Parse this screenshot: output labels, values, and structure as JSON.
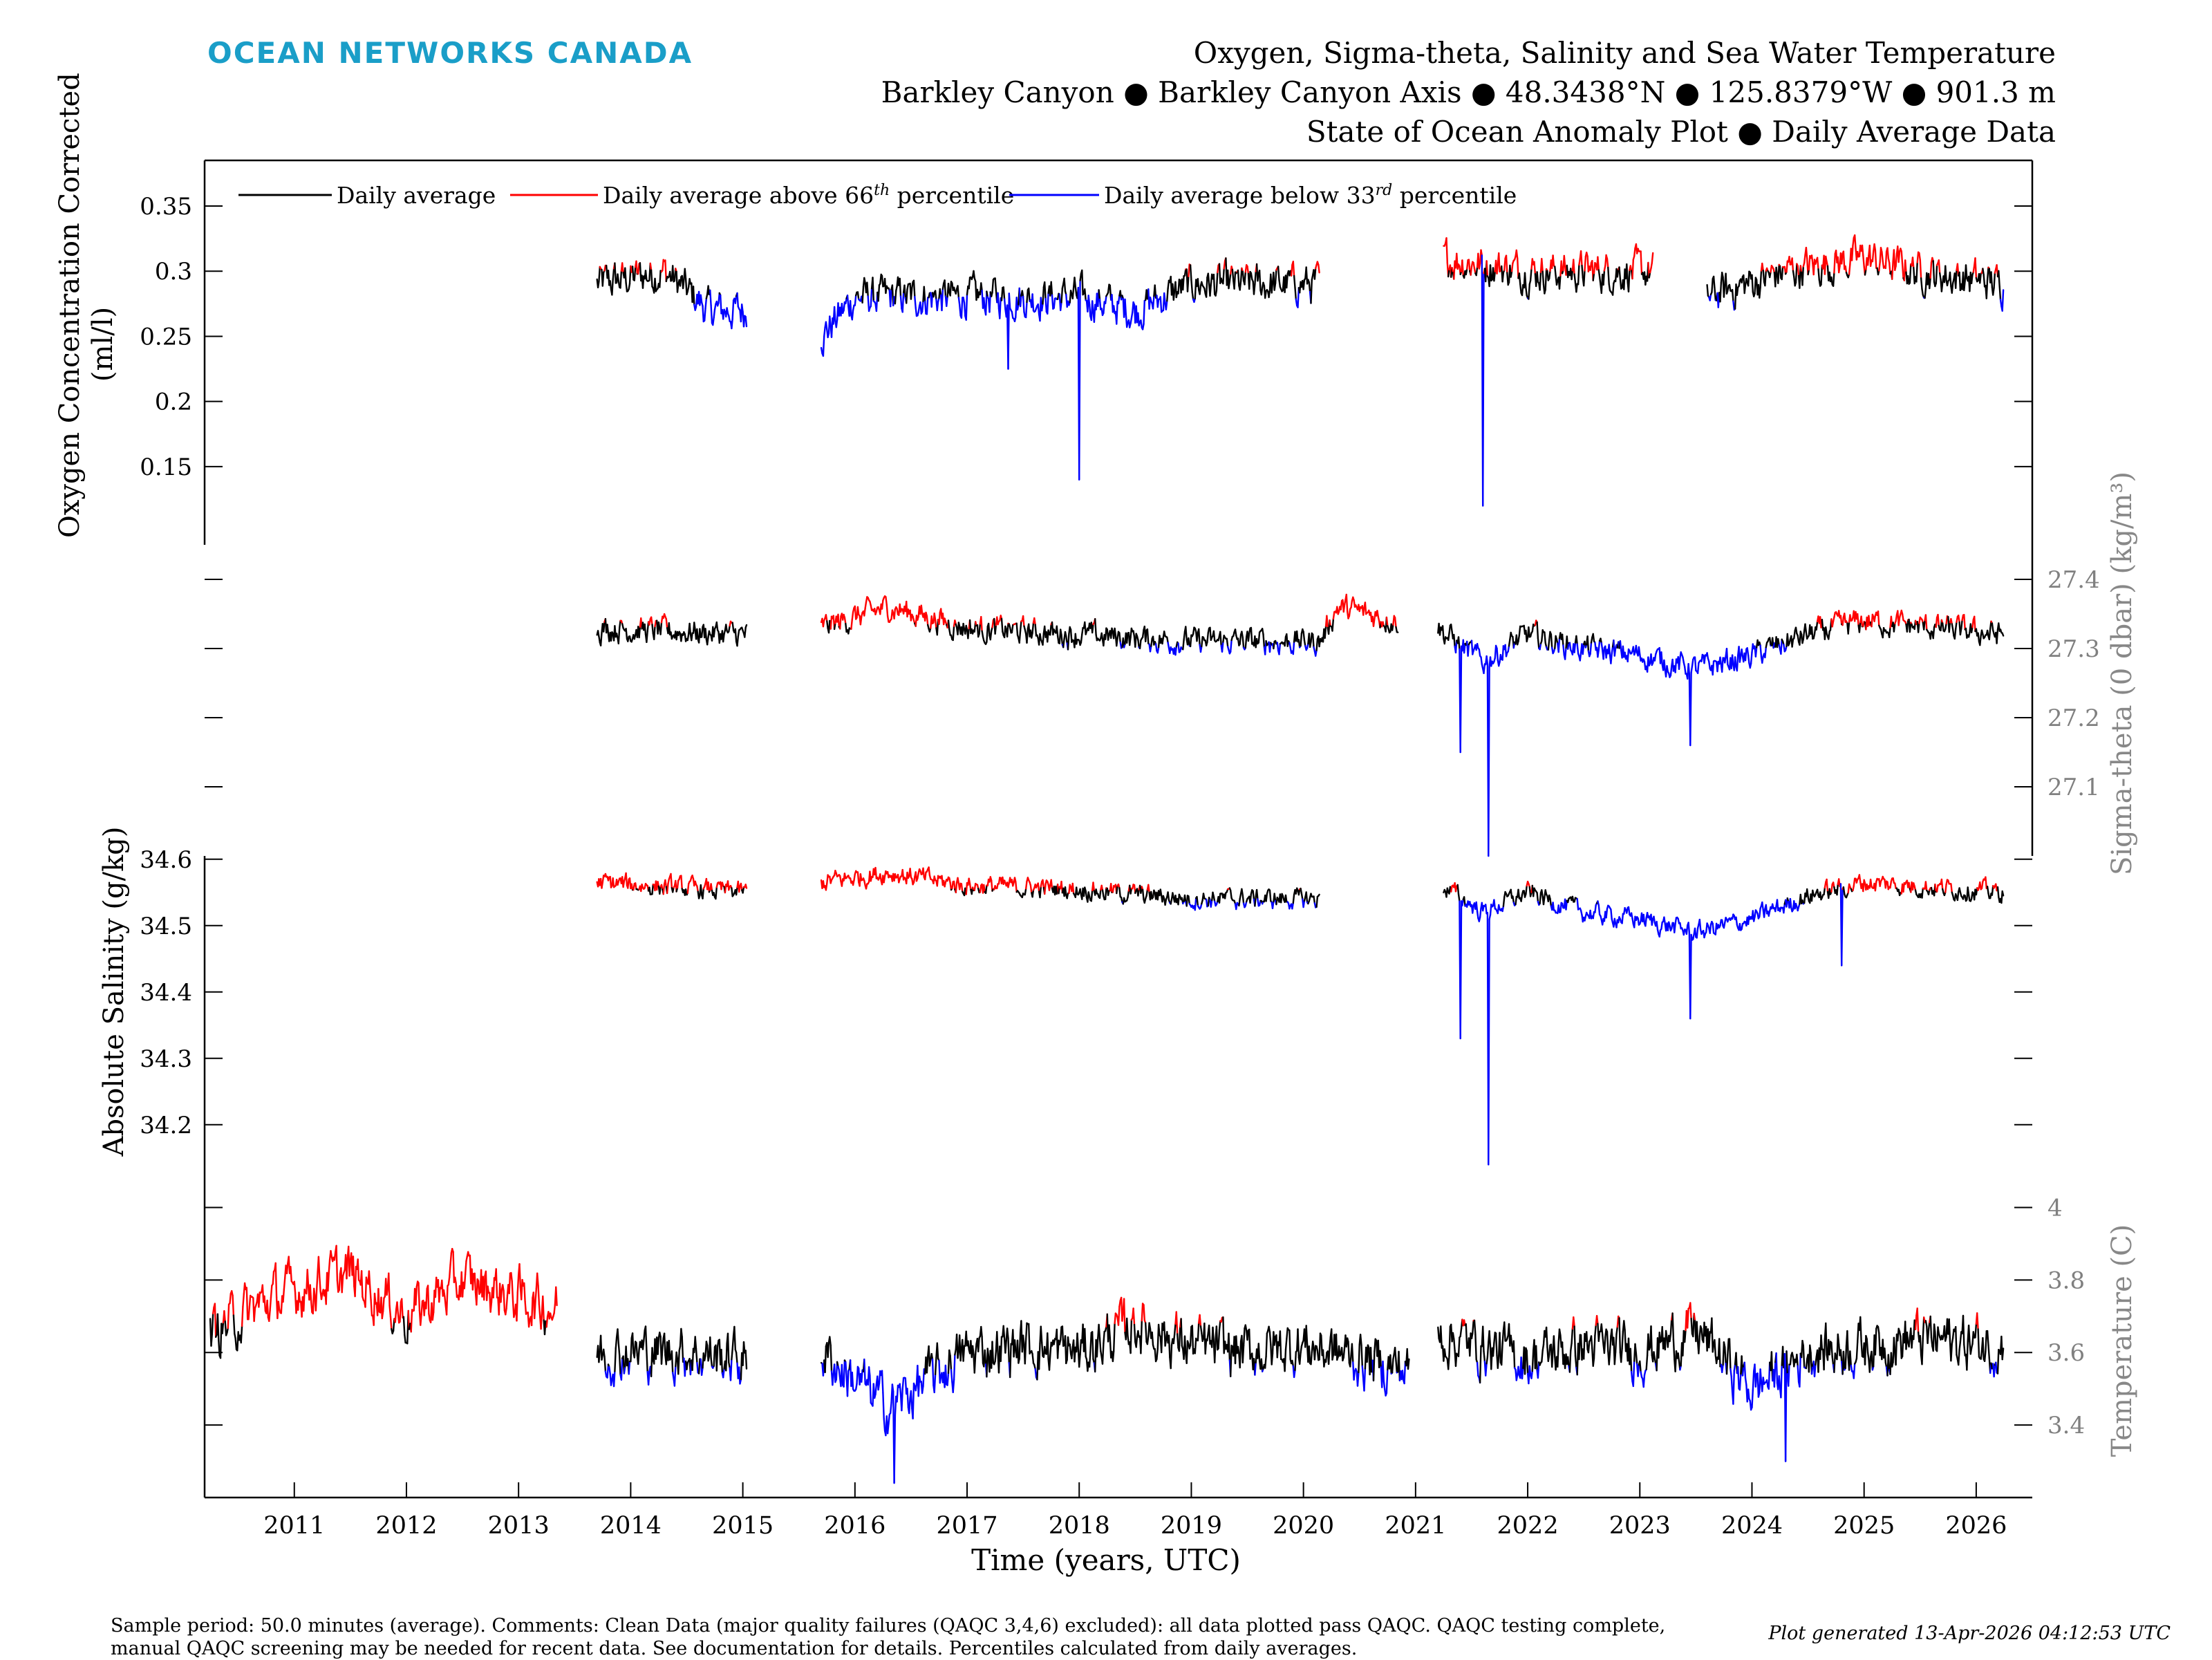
{
  "brand": "OCEAN NETWORKS CANADA",
  "title": {
    "line1": "Oxygen, Sigma-theta, Salinity and Sea Water Temperature",
    "line2": "Barkley Canyon ● Barkley Canyon Axis ● 48.3438°N ● 125.8379°W ● 901.3 m",
    "line3": "State of Ocean Anomaly Plot ● Daily Average Data"
  },
  "legend": {
    "avg": "Daily average",
    "above_pre": "Daily average above 66",
    "above_sup": "th",
    "above_post": " percentile",
    "below_pre": "Daily average below 33",
    "below_sup": "rd",
    "below_post": " percentile"
  },
  "axes": {
    "oxygen_label_1": "Oxygen Concentration Corrected",
    "oxygen_label_2": "(ml/l)",
    "sigma_label": "Sigma-theta (0 dbar) (kg/m³)",
    "salinity_label": "Absolute Salinity (g/kg)",
    "temperature_label": "Temperature (C)",
    "x_label": "Time (years, UTC)"
  },
  "footer": {
    "line1": "Sample period: 50.0 minutes (average). Comments: Clean Data (major quality failures (QAQC 3,4,6) excluded): all data plotted pass QAQC. QAQC testing complete,",
    "line2": "manual QAQC screening may be needed for recent data. See documentation for details. Percentiles calculated from daily averages.",
    "generated": "Plot generated 13-Apr-2026 04:12:53 UTC"
  },
  "colors": {
    "average": "#000000",
    "above": "#ff0000",
    "below": "#0000ff",
    "brand": "#1a9ec8"
  },
  "chart_data": [
    {
      "type": "line",
      "name": "oxygen",
      "ylabel": "Oxygen Concentration Corrected (ml/l)",
      "ylim": [
        0.09,
        0.385
      ],
      "yticks": [
        0.15,
        0.2,
        0.25,
        0.3,
        0.35
      ],
      "ytick_labels": [
        "0.15",
        "0.2",
        "0.25",
        "0.3",
        "0.35"
      ],
      "yaxis_side": "left",
      "segments": [
        [
          2013.7,
          2015.04
        ],
        [
          2015.7,
          2020.15
        ],
        [
          2021.25,
          2023.12
        ],
        [
          2023.6,
          2026.25
        ]
      ],
      "trend": [
        [
          2013.7,
          0.29
        ],
        [
          2014.3,
          0.3
        ],
        [
          2014.7,
          0.27
        ],
        [
          2015.04,
          0.27
        ],
        [
          2015.7,
          0.25
        ],
        [
          2016.0,
          0.28
        ],
        [
          2017.0,
          0.28
        ],
        [
          2018.0,
          0.28
        ],
        [
          2018.5,
          0.27
        ],
        [
          2019.0,
          0.29
        ],
        [
          2019.5,
          0.29
        ],
        [
          2020.15,
          0.29
        ],
        [
          2021.25,
          0.31
        ],
        [
          2022.0,
          0.3
        ],
        [
          2022.5,
          0.3
        ],
        [
          2023.12,
          0.3
        ],
        [
          2023.6,
          0.28
        ],
        [
          2024.3,
          0.3
        ],
        [
          2025.0,
          0.31
        ],
        [
          2025.5,
          0.3
        ],
        [
          2026.25,
          0.29
        ]
      ],
      "spikes": [
        [
          2018.0,
          0.14
        ],
        [
          2021.6,
          0.12
        ],
        [
          2017.37,
          0.225
        ]
      ],
      "noise": 0.012,
      "thresholds": [
        0.28,
        0.3
      ]
    },
    {
      "type": "line",
      "name": "sigma_theta",
      "ylabel": "Sigma-theta (0 dbar) (kg/m³)",
      "ylim": [
        27.0,
        27.45
      ],
      "yticks": [
        27.1,
        27.2,
        27.3,
        27.4
      ],
      "ytick_labels": [
        "27.1",
        "27.2",
        "27.3",
        "27.4"
      ],
      "yaxis_side": "right",
      "segments": [
        [
          2013.7,
          2015.04
        ],
        [
          2015.7,
          2020.85
        ],
        [
          2021.2,
          2026.25
        ]
      ],
      "trend": [
        [
          2013.7,
          27.33
        ],
        [
          2015.04,
          27.32
        ],
        [
          2015.7,
          27.33
        ],
        [
          2016.3,
          27.36
        ],
        [
          2017.0,
          27.33
        ],
        [
          2018.0,
          27.32
        ],
        [
          2019.0,
          27.31
        ],
        [
          2020.15,
          27.31
        ],
        [
          2020.3,
          27.36
        ],
        [
          2020.85,
          27.34
        ],
        [
          2021.2,
          27.33
        ],
        [
          2021.6,
          27.28
        ],
        [
          2022.0,
          27.32
        ],
        [
          2022.5,
          27.3
        ],
        [
          2023.0,
          27.29
        ],
        [
          2023.5,
          27.27
        ],
        [
          2024.0,
          27.29
        ],
        [
          2024.5,
          27.32
        ],
        [
          2025.0,
          27.34
        ],
        [
          2026.25,
          27.32
        ]
      ],
      "spikes": [
        [
          2021.65,
          27.0
        ],
        [
          2021.4,
          27.15
        ],
        [
          2023.45,
          27.16
        ]
      ],
      "noise": 0.015,
      "thresholds": [
        27.305,
        27.335
      ]
    },
    {
      "type": "line",
      "name": "salinity",
      "ylabel": "Absolute Salinity (g/kg)",
      "ylim": [
        34.13,
        34.605
      ],
      "yticks": [
        34.2,
        34.3,
        34.4,
        34.5,
        34.6
      ],
      "ytick_labels": [
        "34.2",
        "34.3",
        "34.4",
        "34.5",
        "34.6"
      ],
      "yaxis_side": "left",
      "segments": [
        [
          2013.7,
          2015.04
        ],
        [
          2015.7,
          2020.15
        ],
        [
          2021.25,
          2026.25
        ]
      ],
      "trend": [
        [
          2013.7,
          34.565
        ],
        [
          2015.04,
          34.55
        ],
        [
          2015.7,
          34.565
        ],
        [
          2016.3,
          34.58
        ],
        [
          2017.0,
          34.56
        ],
        [
          2018.0,
          34.555
        ],
        [
          2019.0,
          34.54
        ],
        [
          2020.15,
          34.54
        ],
        [
          2021.25,
          34.56
        ],
        [
          2021.6,
          34.52
        ],
        [
          2022.0,
          34.55
        ],
        [
          2022.5,
          34.52
        ],
        [
          2023.0,
          34.51
        ],
        [
          2023.5,
          34.49
        ],
        [
          2024.0,
          34.51
        ],
        [
          2024.5,
          34.545
        ],
        [
          2025.0,
          34.565
        ],
        [
          2026.25,
          34.55
        ]
      ],
      "spikes": [
        [
          2021.65,
          34.14
        ],
        [
          2021.4,
          34.33
        ],
        [
          2023.45,
          34.36
        ],
        [
          2024.8,
          34.44
        ]
      ],
      "noise": 0.012,
      "thresholds": [
        34.535,
        34.555
      ]
    },
    {
      "type": "line",
      "name": "temperature",
      "ylabel": "Temperature (C)",
      "ylim": [
        3.2,
        4.1
      ],
      "yticks": [
        3.4,
        3.6,
        3.8,
        4.0
      ],
      "ytick_labels": [
        "3.4",
        "3.6",
        "3.8",
        "4"
      ],
      "yaxis_side": "right",
      "segments": [
        [
          2010.25,
          2013.35
        ],
        [
          2013.7,
          2015.04
        ],
        [
          2015.7,
          2020.95
        ],
        [
          2021.2,
          2026.25
        ]
      ],
      "trend": [
        [
          2010.25,
          3.65
        ],
        [
          2010.8,
          3.75
        ],
        [
          2011.5,
          3.82
        ],
        [
          2012.0,
          3.7
        ],
        [
          2012.5,
          3.8
        ],
        [
          2013.35,
          3.72
        ],
        [
          2013.7,
          3.6
        ],
        [
          2014.5,
          3.6
        ],
        [
          2015.04,
          3.58
        ],
        [
          2015.7,
          3.6
        ],
        [
          2016.3,
          3.45
        ],
        [
          2017.0,
          3.6
        ],
        [
          2017.5,
          3.62
        ],
        [
          2018.0,
          3.6
        ],
        [
          2018.5,
          3.68
        ],
        [
          2019.0,
          3.62
        ],
        [
          2019.5,
          3.6
        ],
        [
          2020.0,
          3.62
        ],
        [
          2020.95,
          3.55
        ],
        [
          2021.2,
          3.65
        ],
        [
          2022.0,
          3.58
        ],
        [
          2022.5,
          3.62
        ],
        [
          2023.0,
          3.6
        ],
        [
          2023.5,
          3.66
        ],
        [
          2024.0,
          3.5
        ],
        [
          2024.5,
          3.6
        ],
        [
          2025.0,
          3.62
        ],
        [
          2025.5,
          3.64
        ],
        [
          2026.25,
          3.62
        ]
      ],
      "spikes": [
        [
          2016.35,
          3.24
        ],
        [
          2024.3,
          3.3
        ]
      ],
      "noise": 0.06,
      "thresholds": [
        3.56,
        3.68
      ]
    }
  ],
  "x_axis": {
    "xlim": [
      2010.2,
      2026.5
    ],
    "ticks": [
      2011,
      2012,
      2013,
      2014,
      2015,
      2016,
      2017,
      2018,
      2019,
      2020,
      2021,
      2022,
      2023,
      2024,
      2025,
      2026
    ]
  }
}
